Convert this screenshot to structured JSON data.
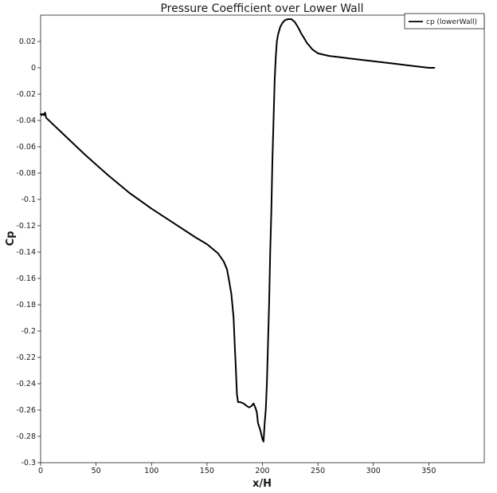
{
  "chart_data": {
    "type": "line",
    "title": "Pressure Coefficient over Lower Wall",
    "xlabel": "x/H",
    "ylabel": "Cp",
    "xlim": [
      0,
      400
    ],
    "ylim": [
      -0.3,
      0.04
    ],
    "grid": false,
    "legend_position": "top-right",
    "x_ticks": [
      0,
      50,
      100,
      150,
      200,
      250,
      300,
      350
    ],
    "x_tick_labels": [
      "0",
      "50",
      "100",
      "150",
      "200",
      "250",
      "300",
      "350"
    ],
    "y_ticks": [
      0.02,
      0,
      -0.02,
      -0.04,
      -0.06,
      -0.08,
      -0.1,
      -0.12,
      -0.14,
      -0.16,
      -0.18,
      -0.2,
      -0.22,
      -0.24,
      -0.26,
      -0.28,
      -0.3
    ],
    "y_tick_labels": [
      "0.02",
      "0",
      "-0.02",
      "-0.04",
      "-0.06",
      "-0.08",
      "-0.1",
      "-0.12",
      "-0.14",
      "-0.16",
      "-0.18",
      "-0.2",
      "-0.22",
      "-0.24",
      "-0.26",
      "-0.28",
      "-0.3"
    ],
    "series": [
      {
        "name": "cp (lowerWall)",
        "color": "#000000",
        "x": [
          0,
          1,
          2,
          3,
          4,
          5,
          10,
          20,
          40,
          60,
          80,
          100,
          120,
          140,
          150,
          160,
          165,
          168,
          170,
          172,
          174,
          175,
          176,
          177,
          178,
          180,
          183,
          186,
          188,
          190,
          192,
          194,
          195,
          196,
          198,
          200,
          201,
          202,
          203,
          204,
          205,
          206,
          207,
          208,
          209,
          210,
          211,
          212,
          213,
          214,
          215,
          216,
          218,
          220,
          223,
          226,
          229,
          232,
          235,
          238,
          240,
          245,
          250,
          255,
          260,
          270,
          280,
          290,
          300,
          310,
          320,
          330,
          340,
          350,
          355
        ],
        "y": [
          -0.035,
          -0.036,
          -0.035,
          -0.036,
          -0.034,
          -0.038,
          -0.042,
          -0.05,
          -0.066,
          -0.081,
          -0.095,
          -0.107,
          -0.118,
          -0.129,
          -0.134,
          -0.141,
          -0.147,
          -0.153,
          -0.162,
          -0.172,
          -0.19,
          -0.21,
          -0.228,
          -0.248,
          -0.254,
          -0.254,
          -0.255,
          -0.257,
          -0.258,
          -0.257,
          -0.255,
          -0.259,
          -0.262,
          -0.27,
          -0.275,
          -0.282,
          -0.284,
          -0.27,
          -0.26,
          -0.24,
          -0.21,
          -0.18,
          -0.14,
          -0.11,
          -0.07,
          -0.04,
          -0.01,
          0.008,
          0.02,
          0.025,
          0.028,
          0.031,
          0.034,
          0.036,
          0.037,
          0.037,
          0.035,
          0.031,
          0.026,
          0.022,
          0.019,
          0.014,
          0.011,
          0.01,
          0.009,
          0.008,
          0.007,
          0.006,
          0.005,
          0.004,
          0.003,
          0.002,
          0.001,
          0.0,
          0.0
        ]
      }
    ]
  }
}
